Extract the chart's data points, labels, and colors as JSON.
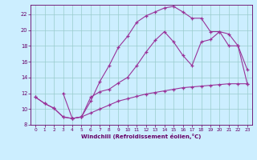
{
  "xlabel": "Windchill (Refroidissement éolien,°C)",
  "bg_color": "#cceeff",
  "line_color": "#993399",
  "grid_color": "#99cccc",
  "xlim": [
    -0.5,
    23.5
  ],
  "ylim": [
    8,
    23.2
  ],
  "yticks": [
    8,
    10,
    12,
    14,
    16,
    18,
    20,
    22
  ],
  "xticks": [
    0,
    1,
    2,
    3,
    4,
    5,
    6,
    7,
    8,
    9,
    10,
    11,
    12,
    13,
    14,
    15,
    16,
    17,
    18,
    19,
    20,
    21,
    22,
    23
  ],
  "line1_x": [
    0,
    1,
    2,
    3,
    4,
    5,
    6,
    7,
    8,
    9,
    10,
    11,
    12,
    13,
    14,
    15,
    16,
    17,
    18,
    19,
    20,
    21,
    22,
    23
  ],
  "line1_y": [
    11.5,
    10.7,
    10.1,
    9.0,
    8.8,
    9.0,
    9.5,
    10.0,
    10.5,
    11.0,
    11.3,
    11.6,
    11.9,
    12.1,
    12.3,
    12.5,
    12.7,
    12.8,
    12.9,
    13.0,
    13.1,
    13.2,
    13.2,
    13.2
  ],
  "line2_x": [
    0,
    1,
    2,
    3,
    4,
    5,
    6,
    7,
    8,
    9,
    10,
    11,
    12,
    13,
    14,
    15,
    16,
    17,
    18,
    19,
    20,
    21,
    22,
    23
  ],
  "line2_y": [
    11.5,
    10.7,
    10.1,
    9.0,
    8.8,
    9.0,
    11.0,
    13.5,
    15.5,
    17.8,
    19.2,
    21.0,
    21.8,
    22.3,
    22.8,
    23.0,
    22.3,
    21.5,
    21.5,
    19.8,
    19.8,
    18.0,
    18.0,
    13.2
  ],
  "line3_x": [
    3,
    4,
    5,
    6,
    7,
    8,
    9,
    10,
    11,
    12,
    13,
    14,
    15,
    16,
    17,
    18,
    19,
    20,
    21,
    22,
    23
  ],
  "line3_y": [
    12.0,
    8.8,
    9.0,
    11.5,
    12.2,
    12.5,
    13.3,
    14.0,
    15.5,
    17.2,
    18.7,
    19.8,
    18.5,
    16.8,
    15.5,
    18.5,
    18.8,
    19.8,
    19.5,
    18.0,
    15.0
  ]
}
